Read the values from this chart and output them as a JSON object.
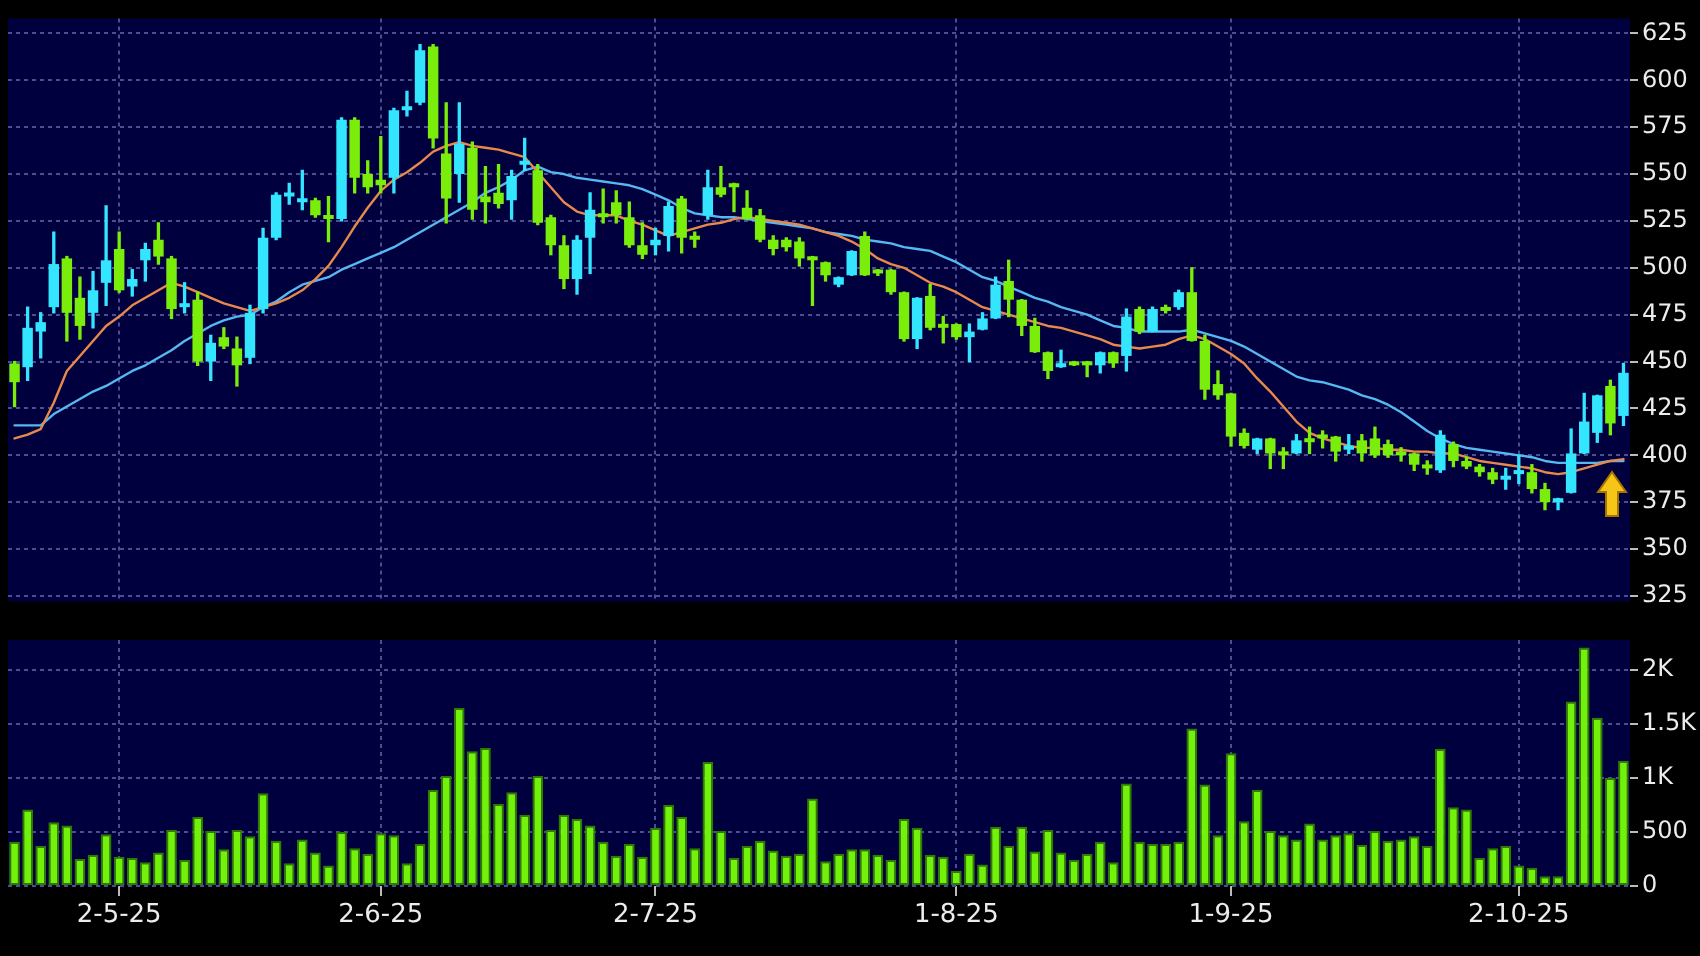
{
  "chart_data": [
    {
      "type": "candlestick",
      "categories": [
        null,
        null,
        null,
        null,
        null,
        null,
        null,
        null,
        null,
        null,
        null,
        null,
        null,
        null,
        null,
        null,
        null,
        null,
        null,
        null,
        null,
        null,
        null,
        null,
        null,
        null,
        null,
        null,
        null,
        null,
        null,
        null,
        null,
        null,
        null,
        null,
        null,
        null,
        null,
        null,
        null,
        null,
        null,
        null,
        null,
        null,
        null,
        null,
        null,
        null,
        null,
        null,
        null,
        null,
        null,
        null,
        null,
        null,
        null,
        null,
        null,
        null,
        null,
        null,
        null,
        null,
        null,
        null,
        null,
        null,
        null,
        null,
        null,
        null,
        null,
        null,
        null,
        null,
        null,
        null,
        null,
        null,
        null,
        null,
        null,
        null,
        null,
        null,
        null,
        null,
        null,
        null,
        null,
        null,
        null,
        null,
        null,
        null,
        null,
        null,
        null,
        null,
        null,
        null,
        null,
        null,
        null,
        null,
        null,
        null,
        null,
        null,
        null,
        null,
        null,
        null,
        null,
        null,
        null,
        null,
        null,
        null,
        null,
        null
      ],
      "ohlc": [
        [
          449,
          450,
          426,
          439
        ],
        [
          447,
          479,
          440,
          468
        ],
        [
          466,
          476,
          452,
          471
        ],
        [
          479,
          519,
          476,
          502
        ],
        [
          505,
          506,
          461,
          476
        ],
        [
          484,
          495,
          462,
          469
        ],
        [
          476,
          498,
          468,
          488
        ],
        [
          492,
          533,
          480,
          504
        ],
        [
          510,
          519,
          487,
          488
        ],
        [
          490,
          499,
          485,
          494
        ],
        [
          504,
          513,
          493,
          510
        ],
        [
          515,
          524,
          502,
          506
        ],
        [
          505,
          506,
          473,
          478
        ],
        [
          479,
          492,
          476,
          481
        ],
        [
          483,
          487,
          448,
          450
        ],
        [
          450,
          464,
          440,
          460
        ],
        [
          463,
          468,
          457,
          458
        ],
        [
          457,
          463,
          437,
          448
        ],
        [
          452,
          480,
          449,
          476
        ],
        [
          478,
          521,
          476,
          516
        ],
        [
          516,
          540,
          515,
          539
        ],
        [
          538,
          545,
          534,
          539
        ],
        [
          535,
          552,
          531,
          536
        ],
        [
          536,
          537,
          527,
          528
        ],
        [
          528,
          538,
          514,
          526
        ],
        [
          526,
          580,
          525,
          579
        ],
        [
          579,
          580,
          540,
          548
        ],
        [
          550,
          557,
          540,
          543
        ],
        [
          547,
          570,
          540,
          544
        ],
        [
          548,
          585,
          540,
          584
        ],
        [
          584,
          594,
          581,
          586
        ],
        [
          588,
          619,
          587,
          616
        ],
        [
          618,
          619,
          564,
          569
        ],
        [
          561,
          588,
          524,
          537
        ],
        [
          550,
          588,
          535,
          566
        ],
        [
          564,
          567,
          526,
          531
        ],
        [
          538,
          554,
          524,
          535
        ],
        [
          540,
          555,
          532,
          534
        ],
        [
          536,
          552,
          526,
          549
        ],
        [
          555,
          569,
          552,
          556
        ],
        [
          552,
          555,
          523,
          524
        ],
        [
          527,
          528,
          507,
          512
        ],
        [
          512,
          517,
          489,
          494
        ],
        [
          494,
          517,
          486,
          515
        ],
        [
          516,
          540,
          497,
          531
        ],
        [
          529,
          542,
          524,
          527
        ],
        [
          535,
          541,
          524,
          528
        ],
        [
          527,
          535,
          511,
          512
        ],
        [
          512,
          524,
          505,
          507
        ],
        [
          512,
          521,
          507,
          515
        ],
        [
          517,
          535,
          509,
          533
        ],
        [
          537,
          538,
          508,
          516
        ],
        [
          516,
          519,
          511,
          515
        ],
        [
          528,
          552,
          526,
          543
        ],
        [
          543,
          554,
          538,
          539
        ],
        [
          544,
          545,
          530,
          543
        ],
        [
          532,
          541,
          526,
          526
        ],
        [
          528,
          531,
          514,
          515
        ],
        [
          515,
          517,
          507,
          510
        ],
        [
          515,
          516,
          509,
          511
        ],
        [
          514,
          516,
          501,
          505
        ],
        [
          505,
          506,
          480,
          504
        ],
        [
          503,
          503,
          493,
          496
        ],
        [
          491,
          495,
          490,
          495
        ],
        [
          496,
          509,
          496,
          509
        ],
        [
          517,
          519,
          496,
          496
        ],
        [
          498,
          499,
          496,
          497
        ],
        [
          499,
          499,
          486,
          487
        ],
        [
          487,
          487,
          461,
          462
        ],
        [
          462,
          484,
          457,
          484
        ],
        [
          485,
          491,
          467,
          468
        ],
        [
          469,
          474,
          460,
          468
        ],
        [
          470,
          470,
          462,
          463
        ],
        [
          463,
          470,
          450,
          466
        ],
        [
          467,
          476,
          467,
          473
        ],
        [
          473,
          495,
          473,
          491
        ],
        [
          493,
          504,
          474,
          483
        ],
        [
          483,
          483,
          464,
          469
        ],
        [
          469,
          473,
          455,
          455
        ],
        [
          455,
          455,
          441,
          445
        ],
        [
          447,
          456,
          447,
          449
        ],
        [
          449,
          450,
          448,
          448
        ],
        [
          449,
          450,
          442,
          448
        ],
        [
          448,
          455,
          444,
          455
        ],
        [
          455,
          455,
          447,
          449
        ],
        [
          453,
          478,
          445,
          474
        ],
        [
          478,
          479,
          465,
          466
        ],
        [
          466,
          479,
          466,
          478
        ],
        [
          478,
          480,
          476,
          477
        ],
        [
          479,
          488,
          478,
          487
        ],
        [
          487,
          500,
          461,
          461
        ],
        [
          461,
          464,
          430,
          435
        ],
        [
          438,
          445,
          430,
          432
        ],
        [
          433,
          433,
          405,
          410
        ],
        [
          412,
          414,
          404,
          405
        ],
        [
          403,
          409,
          401,
          409
        ],
        [
          409,
          409,
          393,
          401
        ],
        [
          401,
          404,
          393,
          400
        ],
        [
          401,
          411,
          401,
          408
        ],
        [
          408,
          415,
          401,
          407
        ],
        [
          410,
          413,
          404,
          409
        ],
        [
          410,
          410,
          397,
          402
        ],
        [
          403,
          411,
          401,
          405
        ],
        [
          408,
          411,
          397,
          401
        ],
        [
          409,
          415,
          399,
          400
        ],
        [
          406,
          408,
          399,
          400
        ],
        [
          401,
          404,
          397,
          400
        ],
        [
          401,
          401,
          392,
          395
        ],
        [
          395,
          397,
          390,
          393
        ],
        [
          392,
          413,
          391,
          411
        ],
        [
          406,
          407,
          394,
          397
        ],
        [
          397,
          399,
          393,
          394
        ],
        [
          394,
          395,
          389,
          391
        ],
        [
          391,
          393,
          385,
          387
        ],
        [
          387,
          393,
          382,
          388
        ],
        [
          390,
          400,
          385,
          392
        ],
        [
          391,
          395,
          380,
          382
        ],
        [
          382,
          385,
          371,
          375
        ],
        [
          375,
          377,
          371,
          376
        ],
        [
          380,
          414,
          380,
          401
        ],
        [
          401,
          433,
          401,
          418
        ],
        [
          412,
          432,
          407,
          432
        ],
        [
          437,
          440,
          411,
          417
        ],
        [
          421,
          449,
          416,
          444
        ]
      ],
      "colors": [
        "#7aee0a",
        "#33e5ff",
        "#33e5ff",
        "#33e5ff",
        "#7aee0a",
        "#7aee0a",
        "#33e5ff",
        "#33e5ff",
        "#7aee0a",
        "#33e5ff",
        "#33e5ff",
        "#7aee0a",
        "#7aee0a",
        "#33e5ff",
        "#7aee0a",
        "#33e5ff",
        "#7aee0a",
        "#7aee0a",
        "#33e5ff",
        "#33e5ff",
        "#33e5ff",
        "#33e5ff",
        "#33e5ff",
        "#7aee0a",
        "#7aee0a",
        "#33e5ff",
        "#7aee0a",
        "#7aee0a",
        "#7aee0a",
        "#33e5ff",
        "#33e5ff",
        "#33e5ff",
        "#7aee0a",
        "#7aee0a",
        "#33e5ff",
        "#7aee0a",
        "#7aee0a",
        "#7aee0a",
        "#33e5ff",
        "#33e5ff",
        "#7aee0a",
        "#7aee0a",
        "#7aee0a",
        "#33e5ff",
        "#33e5ff",
        "#7aee0a",
        "#7aee0a",
        "#7aee0a",
        "#7aee0a",
        "#33e5ff",
        "#33e5ff",
        "#7aee0a",
        "#7aee0a",
        "#33e5ff",
        "#7aee0a",
        "#7aee0a",
        "#7aee0a",
        "#7aee0a",
        "#7aee0a",
        "#7aee0a",
        "#7aee0a",
        "#7aee0a",
        "#7aee0a",
        "#33e5ff",
        "#33e5ff",
        "#7aee0a",
        "#7aee0a",
        "#7aee0a",
        "#7aee0a",
        "#33e5ff",
        "#7aee0a",
        "#7aee0a",
        "#7aee0a",
        "#33e5ff",
        "#33e5ff",
        "#33e5ff",
        "#7aee0a",
        "#7aee0a",
        "#7aee0a",
        "#7aee0a",
        "#33e5ff",
        "#7aee0a",
        "#7aee0a",
        "#33e5ff",
        "#7aee0a",
        "#33e5ff",
        "#7aee0a",
        "#33e5ff",
        "#7aee0a",
        "#33e5ff",
        "#7aee0a",
        "#7aee0a",
        "#7aee0a",
        "#7aee0a",
        "#7aee0a",
        "#33e5ff",
        "#7aee0a",
        "#7aee0a",
        "#33e5ff",
        "#7aee0a",
        "#7aee0a",
        "#7aee0a",
        "#33e5ff",
        "#7aee0a",
        "#7aee0a",
        "#7aee0a",
        "#7aee0a",
        "#7aee0a",
        "#7aee0a",
        "#33e5ff",
        "#7aee0a",
        "#7aee0a",
        "#7aee0a",
        "#7aee0a",
        "#33e5ff",
        "#33e5ff",
        "#7aee0a",
        "#7aee0a",
        "#33e5ff",
        "#33e5ff",
        "#33e5ff",
        "#33e5ff",
        "#7aee0a",
        "#33e5ff"
      ],
      "series": [
        {
          "type": "line",
          "color": "#e8884a",
          "values": [
            409,
            411,
            414,
            428,
            445,
            453,
            461,
            469,
            474,
            480,
            484,
            488,
            492,
            490,
            487,
            484,
            481,
            479,
            477,
            479,
            481,
            484,
            488,
            494,
            501,
            511,
            522,
            532,
            541,
            547,
            551,
            556,
            562,
            565,
            567,
            565,
            564,
            563,
            561,
            559,
            551,
            543,
            535,
            530,
            528,
            528,
            528,
            525,
            523,
            520,
            517,
            519,
            521,
            523,
            524,
            526,
            527,
            526,
            525,
            524,
            523,
            521,
            519,
            517,
            514,
            510,
            505,
            502,
            500,
            496,
            492,
            490,
            487,
            483,
            479,
            477,
            475,
            473,
            471,
            469,
            468,
            466,
            464,
            462,
            459,
            458,
            457,
            458,
            459,
            462,
            464,
            462,
            458,
            454,
            449,
            441,
            434,
            426,
            418,
            412,
            409,
            407,
            405,
            404,
            404,
            403,
            403,
            402,
            402,
            401,
            401,
            399,
            397,
            396,
            395,
            394,
            393,
            391,
            390,
            391,
            393,
            395,
            397,
            398
          ]
        },
        {
          "type": "line",
          "color": "#55b8f0",
          "values": [
            416,
            416,
            416,
            422,
            426,
            430,
            434,
            437,
            441,
            445,
            448,
            452,
            456,
            461,
            465,
            469,
            472,
            474,
            475,
            479,
            482,
            487,
            491,
            493,
            495,
            499,
            502,
            505,
            508,
            511,
            515,
            519,
            523,
            527,
            531,
            535,
            540,
            543,
            547,
            552,
            554,
            551,
            550,
            548,
            547,
            546,
            545,
            544,
            542,
            539,
            536,
            532,
            529,
            528,
            527,
            527,
            526,
            525,
            524,
            523,
            522,
            521,
            519,
            518,
            517,
            515,
            514,
            513,
            511,
            510,
            509,
            506,
            503,
            499,
            495,
            493,
            490,
            487,
            484,
            482,
            479,
            477,
            475,
            472,
            469,
            468,
            466,
            466,
            466,
            466,
            467,
            465,
            463,
            461,
            458,
            454,
            450,
            446,
            442,
            440,
            439,
            437,
            435,
            432,
            430,
            427,
            423,
            418,
            413,
            409,
            406,
            404,
            403,
            402,
            401,
            400,
            399,
            397,
            396,
            396,
            396,
            396,
            397,
            397
          ]
        }
      ],
      "ylim": [
        322,
        633
      ],
      "yticks": [
        325,
        350,
        375,
        400,
        425,
        450,
        475,
        500,
        525,
        550,
        575,
        600,
        625
      ],
      "grid": true,
      "tick_labels": "y"
    },
    {
      "type": "bar",
      "categories": [
        null,
        null,
        null,
        null,
        null,
        null,
        null,
        null,
        "2-5-25",
        null,
        null,
        null,
        null,
        null,
        null,
        null,
        null,
        null,
        null,
        null,
        null,
        null,
        null,
        null,
        null,
        null,
        null,
        null,
        "2-6-25",
        null,
        null,
        null,
        null,
        null,
        null,
        null,
        null,
        null,
        null,
        null,
        null,
        null,
        null,
        null,
        null,
        null,
        null,
        null,
        null,
        "2-7-25",
        null,
        null,
        null,
        null,
        null,
        null,
        null,
        null,
        null,
        null,
        null,
        null,
        null,
        null,
        null,
        null,
        null,
        null,
        null,
        null,
        null,
        null,
        "1-8-25",
        null,
        null,
        null,
        null,
        null,
        null,
        null,
        null,
        null,
        null,
        null,
        null,
        null,
        null,
        null,
        null,
        null,
        null,
        null,
        null,
        "1-9-25",
        null,
        null,
        null,
        null,
        null,
        null,
        null,
        null,
        null,
        null,
        null,
        null,
        null,
        null,
        null,
        null,
        null,
        null,
        null,
        null,
        null,
        "2-10-25",
        null,
        null,
        null,
        null,
        null,
        null,
        null,
        null
      ],
      "values": [
        410,
        710,
        370,
        590,
        560,
        250,
        290,
        480,
        270,
        260,
        220,
        310,
        520,
        240,
        640,
        510,
        340,
        520,
        460,
        860,
        420,
        210,
        430,
        310,
        190,
        500,
        350,
        300,
        490,
        470,
        210,
        390,
        890,
        1020,
        1650,
        1250,
        1280,
        760,
        870,
        660,
        1020,
        520,
        660,
        620,
        560,
        410,
        280,
        390,
        270,
        540,
        750,
        640,
        350,
        1150,
        510,
        260,
        370,
        420,
        330,
        280,
        300,
        810,
        230,
        300,
        340,
        340,
        290,
        240,
        620,
        540,
        290,
        270,
        140,
        300,
        200,
        550,
        370,
        550,
        320,
        520,
        310,
        240,
        300,
        410,
        220,
        950,
        410,
        390,
        390,
        410,
        1460,
        940,
        470,
        1230,
        600,
        890,
        510,
        470,
        430,
        580,
        430,
        470,
        490,
        380,
        510,
        420,
        430,
        460,
        370,
        1270,
        730,
        710,
        260,
        350,
        370,
        190,
        170,
        90,
        90,
        1710,
        2210,
        1560,
        1000,
        1160
      ],
      "color": "#72f20a",
      "ylim": [
        0,
        2280
      ],
      "yticks": [
        0,
        500,
        {
          "value": 1000,
          "label": "1K"
        },
        {
          "value": 1500,
          "label": "1.5K"
        },
        {
          "value": 2000,
          "label": "2K"
        }
      ],
      "grid": true
    }
  ]
}
